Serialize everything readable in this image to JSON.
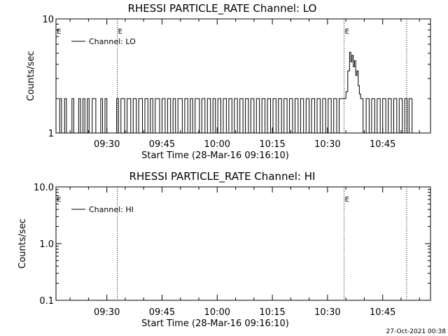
{
  "footer": {
    "timestamp": "27-Oct-2021 00:38"
  },
  "chart_data": [
    {
      "type": "line",
      "title": "RHESSI PARTICLE_RATE Channel: LO",
      "xlabel": "Start Time (28-Mar-16 09:16:10)",
      "ylabel": "Counts/sec",
      "y_scale": "log",
      "ylim": [
        1,
        10
      ],
      "ytick_labels": [
        "1",
        "10"
      ],
      "xtick_labels": [
        "09:30",
        "09:45",
        "10:00",
        "10:15",
        "10:30",
        "10:45"
      ],
      "xtick_values": [
        "09:30",
        "09:45",
        "10:00",
        "10:15",
        "10:30",
        "10:45"
      ],
      "xlim": [
        "09:16:10",
        "10:58:00"
      ],
      "legend": "Channel: LO",
      "legend_position": "top-left",
      "grid": false,
      "vlines": [
        {
          "time": "09:32:50",
          "label": "E"
        },
        {
          "time": "10:34:30",
          "label": "E"
        },
        {
          "time": "10:51:30",
          "label": ""
        }
      ],
      "edge_marker": "E",
      "series": [
        {
          "name": "Channel: LO",
          "points": [
            [
              "09:16:10",
              1
            ],
            [
              "09:17:10",
              2
            ],
            [
              "09:17:40",
              1
            ],
            [
              "09:18:30",
              2
            ],
            [
              "09:19:00",
              1
            ],
            [
              "09:20:30",
              2
            ],
            [
              "09:21:00",
              1
            ],
            [
              "09:22:20",
              2
            ],
            [
              "09:22:50",
              1
            ],
            [
              "09:23:30",
              2
            ],
            [
              "09:24:00",
              1
            ],
            [
              "09:24:40",
              2
            ],
            [
              "09:25:10",
              1
            ],
            [
              "09:26:00",
              2
            ],
            [
              "09:26:30",
              2
            ],
            [
              "09:27:00",
              1
            ],
            [
              "09:28:20",
              2
            ],
            [
              "09:28:50",
              1
            ],
            [
              "09:29:30",
              2
            ],
            [
              "09:30:00",
              1
            ],
            [
              "09:32:40",
              2
            ],
            [
              "09:33:10",
              1
            ],
            [
              "09:33:50",
              2
            ],
            [
              "09:34:50",
              1
            ],
            [
              "09:35:30",
              2
            ],
            [
              "09:36:30",
              1
            ],
            [
              "09:37:10",
              2
            ],
            [
              "09:38:00",
              1
            ],
            [
              "09:38:40",
              2
            ],
            [
              "09:39:40",
              1
            ],
            [
              "09:40:20",
              2
            ],
            [
              "09:41:10",
              1
            ],
            [
              "09:41:50",
              2
            ],
            [
              "09:42:30",
              1
            ],
            [
              "09:43:10",
              2
            ],
            [
              "09:44:20",
              1
            ],
            [
              "09:45:00",
              2
            ],
            [
              "09:45:50",
              1
            ],
            [
              "09:46:30",
              2
            ],
            [
              "09:47:20",
              1
            ],
            [
              "09:48:00",
              2
            ],
            [
              "09:48:40",
              1
            ],
            [
              "09:49:20",
              2
            ],
            [
              "09:50:30",
              1
            ],
            [
              "09:51:10",
              2
            ],
            [
              "09:52:00",
              1
            ],
            [
              "09:52:40",
              2
            ],
            [
              "09:53:20",
              1
            ],
            [
              "09:54:00",
              2
            ],
            [
              "09:55:10",
              1
            ],
            [
              "09:55:50",
              2
            ],
            [
              "09:56:40",
              1
            ],
            [
              "09:57:20",
              2
            ],
            [
              "09:58:10",
              1
            ],
            [
              "09:58:50",
              2
            ],
            [
              "09:59:30",
              1
            ],
            [
              "10:00:10",
              2
            ],
            [
              "10:01:00",
              1
            ],
            [
              "10:01:40",
              2
            ],
            [
              "10:02:30",
              1
            ],
            [
              "10:03:10",
              2
            ],
            [
              "10:04:00",
              1
            ],
            [
              "10:04:40",
              2
            ],
            [
              "10:05:30",
              1
            ],
            [
              "10:06:10",
              2
            ],
            [
              "10:07:00",
              1
            ],
            [
              "10:07:40",
              2
            ],
            [
              "10:08:30",
              1
            ],
            [
              "10:09:10",
              2
            ],
            [
              "10:10:00",
              1
            ],
            [
              "10:10:40",
              2
            ],
            [
              "10:11:30",
              1
            ],
            [
              "10:12:10",
              2
            ],
            [
              "10:13:00",
              1
            ],
            [
              "10:13:40",
              2
            ],
            [
              "10:14:30",
              1
            ],
            [
              "10:15:10",
              2
            ],
            [
              "10:16:00",
              1
            ],
            [
              "10:16:40",
              2
            ],
            [
              "10:17:30",
              1
            ],
            [
              "10:18:10",
              2
            ],
            [
              "10:19:00",
              1
            ],
            [
              "10:19:40",
              2
            ],
            [
              "10:20:30",
              1
            ],
            [
              "10:21:10",
              2
            ],
            [
              "10:22:00",
              1
            ],
            [
              "10:22:40",
              2
            ],
            [
              "10:23:30",
              1
            ],
            [
              "10:24:10",
              2
            ],
            [
              "10:25:00",
              1
            ],
            [
              "10:25:40",
              2
            ],
            [
              "10:26:30",
              1
            ],
            [
              "10:27:10",
              2
            ],
            [
              "10:28:00",
              1
            ],
            [
              "10:28:40",
              2
            ],
            [
              "10:29:30",
              1
            ],
            [
              "10:30:10",
              2
            ],
            [
              "10:31:00",
              1
            ],
            [
              "10:31:40",
              2
            ],
            [
              "10:32:30",
              1
            ],
            [
              "10:33:10",
              2
            ],
            [
              "10:34:20",
              2
            ],
            [
              "10:35:00",
              2.3
            ],
            [
              "10:35:30",
              3.5
            ],
            [
              "10:36:00",
              5.1
            ],
            [
              "10:36:20",
              4.2
            ],
            [
              "10:36:40",
              4.8
            ],
            [
              "10:37:00",
              3.8
            ],
            [
              "10:37:20",
              4.3
            ],
            [
              "10:37:40",
              3.2
            ],
            [
              "10:38:00",
              3.5
            ],
            [
              "10:38:20",
              2.6
            ],
            [
              "10:38:40",
              2.2
            ],
            [
              "10:39:00",
              2
            ],
            [
              "10:39:40",
              1
            ],
            [
              "10:40:30",
              2
            ],
            [
              "10:41:20",
              1
            ],
            [
              "10:42:00",
              2
            ],
            [
              "10:42:50",
              1
            ],
            [
              "10:43:30",
              2
            ],
            [
              "10:44:20",
              1
            ],
            [
              "10:45:00",
              2
            ],
            [
              "10:45:50",
              1
            ],
            [
              "10:46:30",
              2
            ],
            [
              "10:47:20",
              1
            ],
            [
              "10:48:00",
              2
            ],
            [
              "10:48:50",
              1
            ],
            [
              "10:49:30",
              2
            ],
            [
              "10:50:20",
              1
            ],
            [
              "10:51:00",
              2
            ],
            [
              "10:51:40",
              1
            ],
            [
              "10:52:10",
              2
            ],
            [
              "10:53:00",
              1
            ]
          ]
        }
      ]
    },
    {
      "type": "line",
      "title": "RHESSI PARTICLE_RATE Channel: HI",
      "xlabel": "Start Time (28-Mar-16 09:16:10)",
      "ylabel": "Counts/sec",
      "y_scale": "log",
      "ylim": [
        0.1,
        10
      ],
      "ytick_labels": [
        "0.1",
        "1.0",
        "10.0"
      ],
      "xtick_labels": [
        "09:30",
        "09:45",
        "10:00",
        "10:15",
        "10:30",
        "10:45"
      ],
      "xtick_values": [
        "09:30",
        "09:45",
        "10:00",
        "10:15",
        "10:30",
        "10:45"
      ],
      "xlim": [
        "09:16:10",
        "10:58:00"
      ],
      "legend": "Channel: HI",
      "legend_position": "top-left",
      "grid": false,
      "vlines": [
        {
          "time": "09:32:50",
          "label": ""
        },
        {
          "time": "10:34:30",
          "label": "E"
        },
        {
          "time": "10:51:30",
          "label": ""
        }
      ],
      "edge_marker": "E",
      "series": [
        {
          "name": "Channel: HI",
          "points": []
        }
      ]
    }
  ]
}
